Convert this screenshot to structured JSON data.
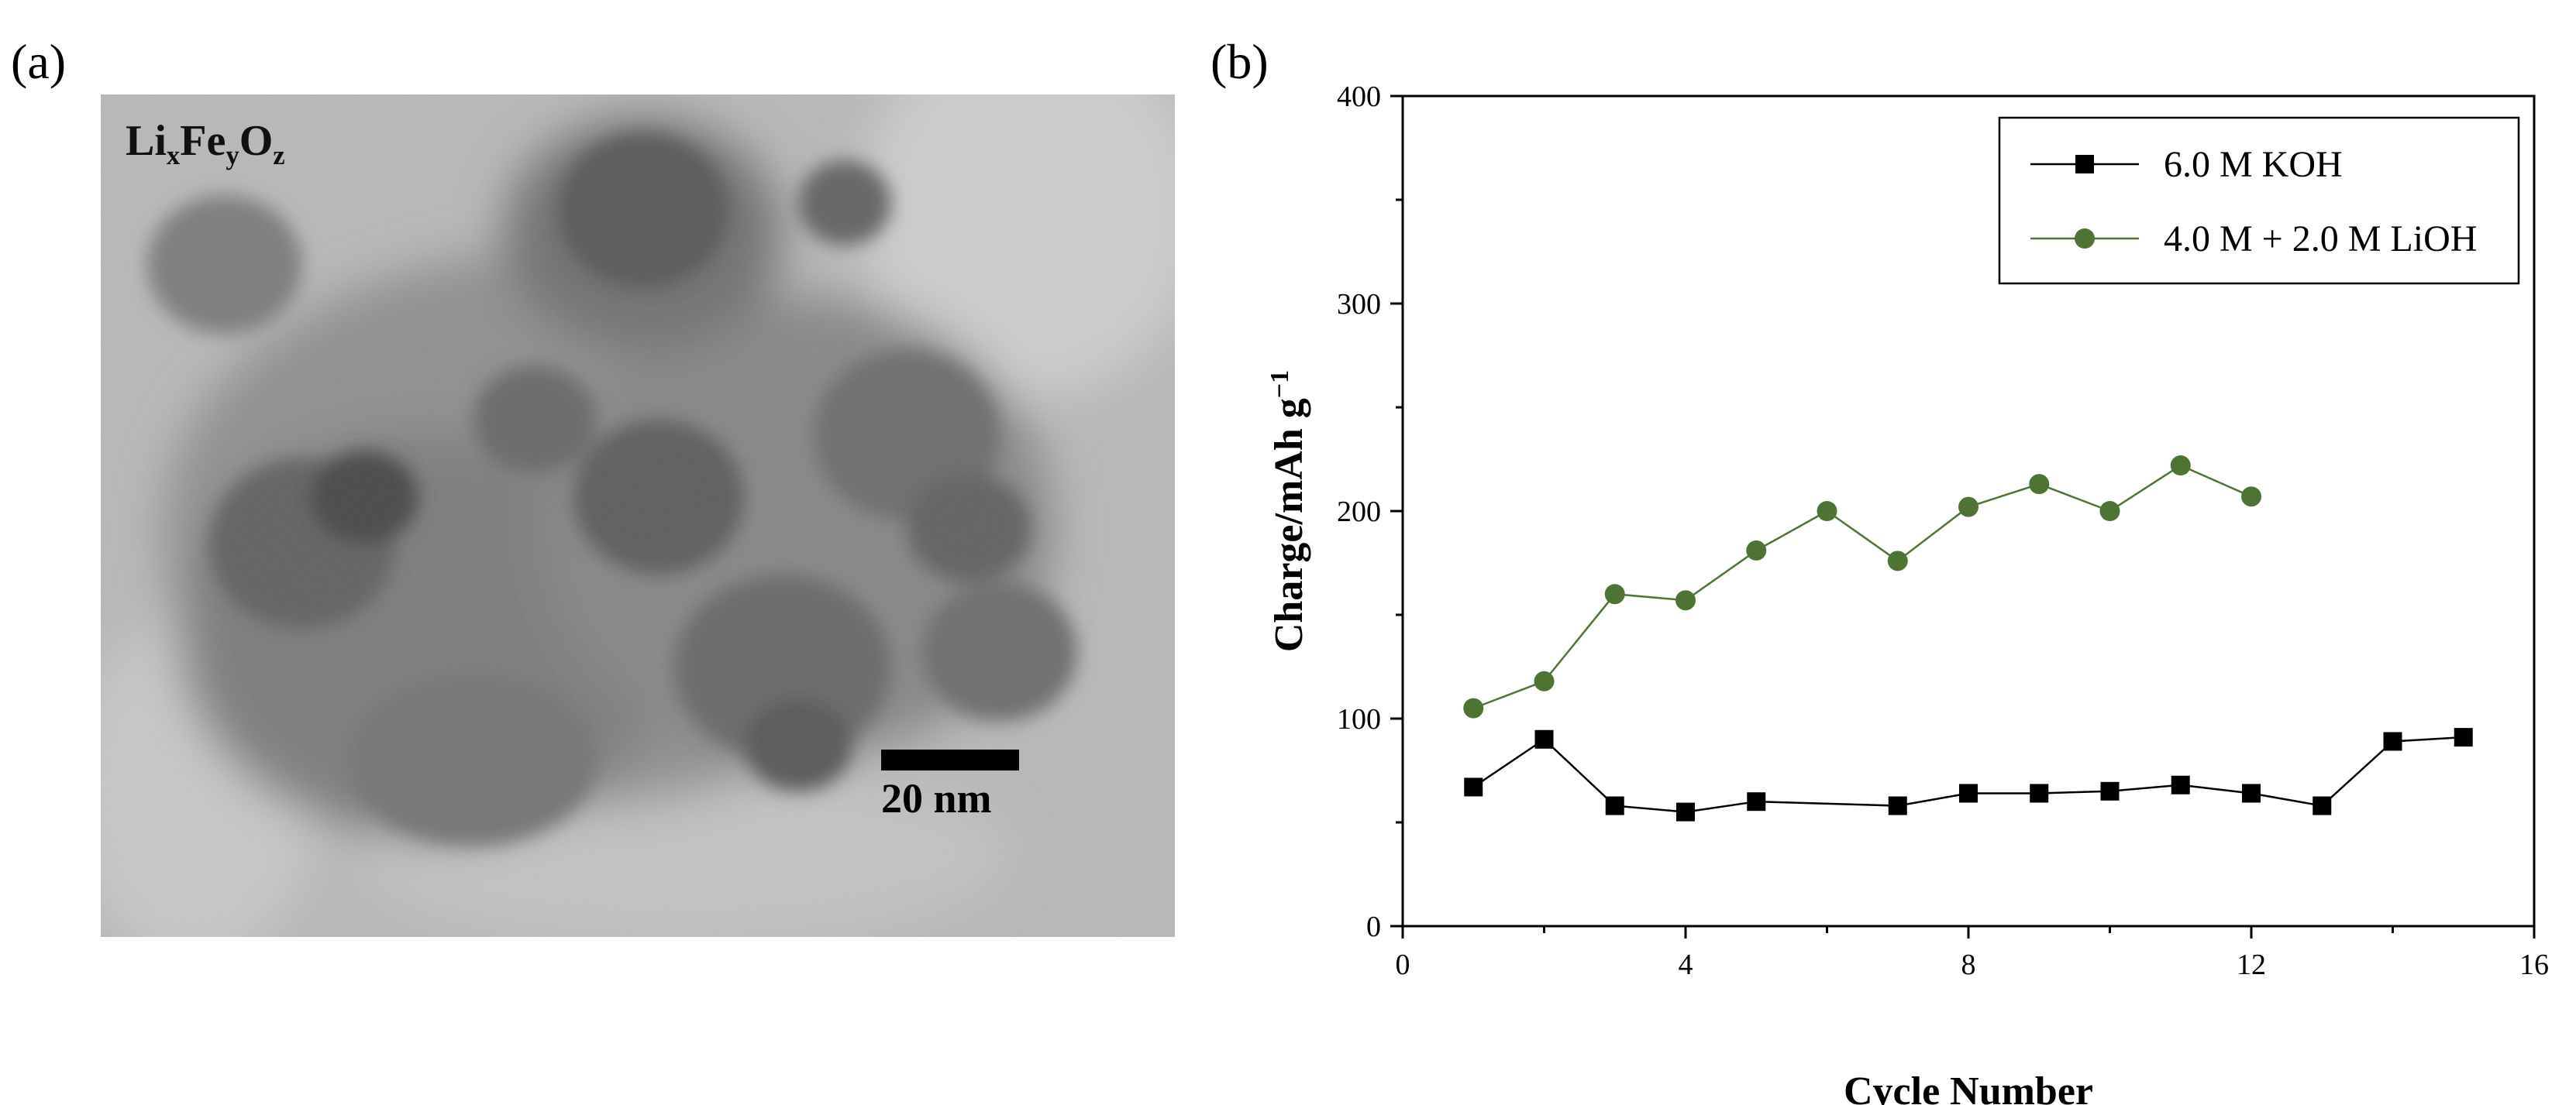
{
  "panel_a": {
    "label": "(a)",
    "formula": {
      "li": "Li",
      "x": "x",
      "fe": "Fe",
      "y": "y",
      "o": "O",
      "z": "z"
    },
    "scale_bar_label": "20 nm"
  },
  "panel_b": {
    "label": "(b)"
  },
  "chart_data": {
    "type": "line",
    "xlabel": "Cycle Number",
    "ylabel": "Charge/mAh g",
    "ylabel_superscript": "−1",
    "xlim": [
      0,
      16
    ],
    "ylim": [
      0,
      400
    ],
    "xticks": [
      0,
      4,
      8,
      12,
      16
    ],
    "yticks": [
      0,
      100,
      200,
      300,
      400
    ],
    "grid": false,
    "legend_position": "top-right",
    "series": [
      {
        "name": "6.0 M KOH",
        "marker": "square",
        "color": "#000000",
        "x": [
          1,
          2,
          3,
          4,
          5,
          7,
          8,
          9,
          10,
          11,
          12,
          13,
          14,
          15
        ],
        "y": [
          67,
          90,
          58,
          55,
          60,
          58,
          64,
          64,
          65,
          68,
          64,
          58,
          89,
          91
        ]
      },
      {
        "name": "4.0 M + 2.0 M LiOH",
        "marker": "circle",
        "color": "#4e7434",
        "x": [
          1,
          2,
          3,
          4,
          5,
          6,
          7,
          8,
          9,
          10,
          11,
          12
        ],
        "y": [
          105,
          118,
          160,
          157,
          181,
          200,
          176,
          202,
          213,
          200,
          222,
          207
        ]
      }
    ]
  }
}
